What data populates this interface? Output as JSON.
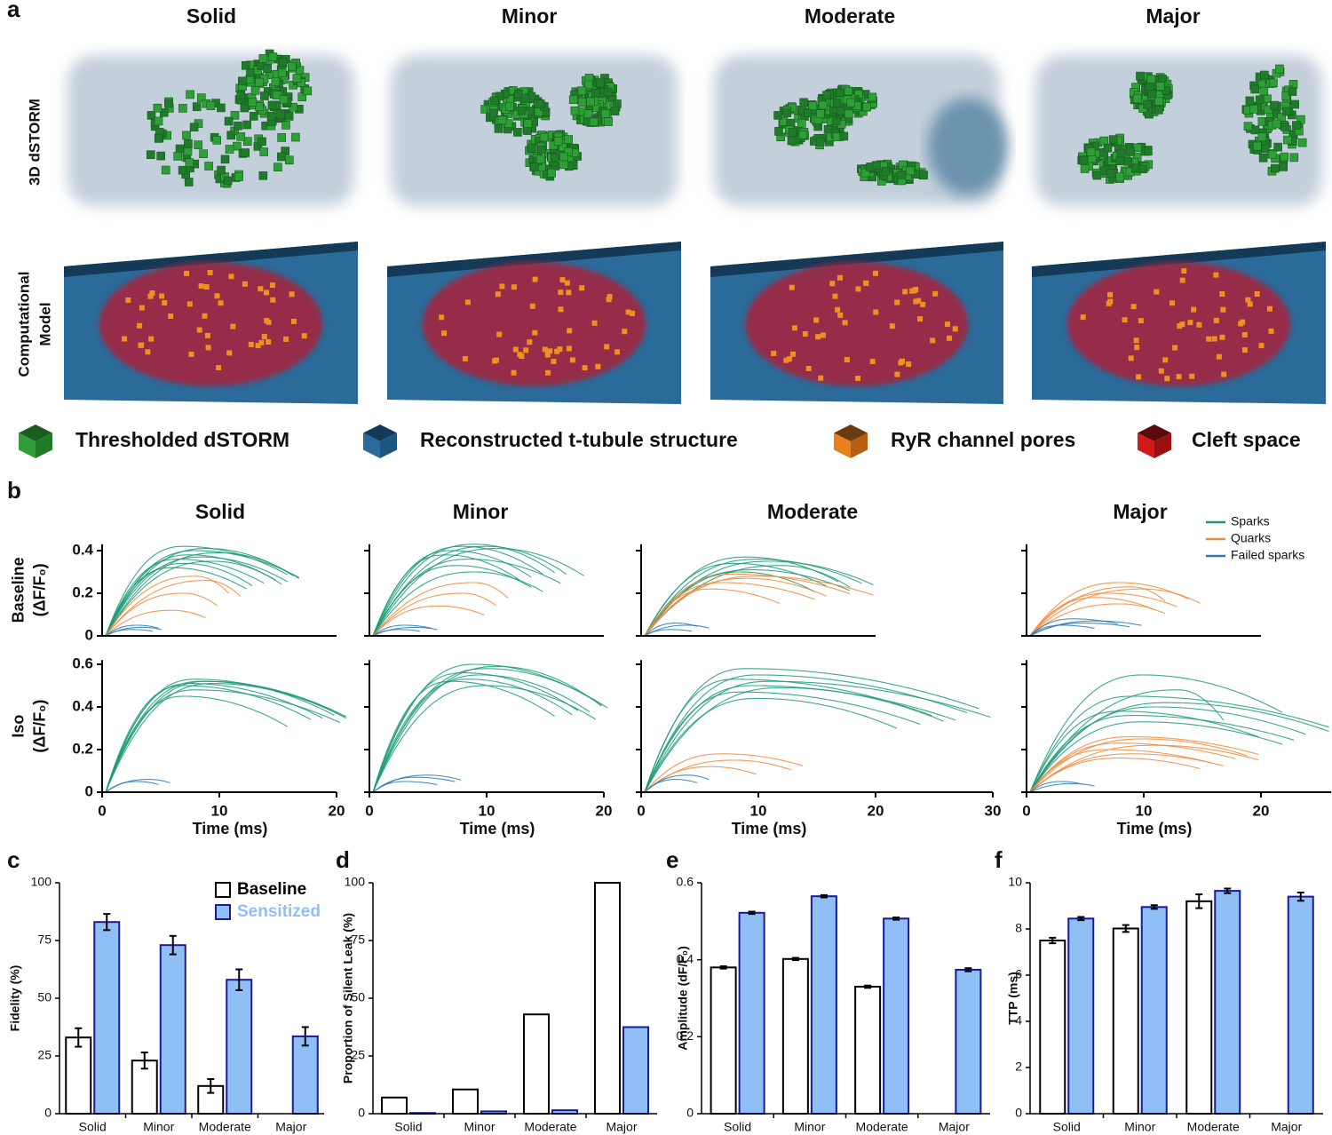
{
  "panel_labels": [
    "a",
    "b",
    "c",
    "d",
    "e",
    "f"
  ],
  "panel_a": {
    "columns": [
      "Solid",
      "Minor",
      "Moderate",
      "Major"
    ],
    "rows": [
      [
        "3D dSTORM"
      ],
      [
        "Computational",
        "Model"
      ]
    ],
    "legend": [
      "Thresholded dSTORM",
      "Reconstructed t-tubule structure",
      "RyR channel pores",
      "Cleft space"
    ]
  },
  "panel_b_legend": [
    {
      "name": "Sparks",
      "color": "#1a9a76"
    },
    {
      "name": "Quarks",
      "color": "#f08a3a"
    },
    {
      "name": "Failed sparks",
      "color": "#2b7bba"
    }
  ],
  "chart_data": [
    {
      "type": "line",
      "title": "Solid",
      "ylabel": [
        "Baseline",
        "(ΔF/F₀)"
      ],
      "xlim": [
        0,
        20
      ],
      "ylim": [
        0,
        0.43
      ],
      "yticks": [
        0,
        0.2,
        0.4
      ],
      "ytick_labels": true,
      "series": [
        {
          "legend_entry": 0,
          "curves": [
            [
              7,
              0.42,
              16
            ],
            [
              8,
              0.4,
              17
            ],
            [
              7.5,
              0.38,
              15
            ],
            [
              9,
              0.41,
              16.5
            ],
            [
              6.5,
              0.36,
              14
            ],
            [
              8.5,
              0.37,
              16
            ],
            [
              10,
              0.39,
              17
            ],
            [
              7,
              0.34,
              13
            ],
            [
              9.5,
              0.35,
              15.5
            ],
            [
              6,
              0.32,
              12.5
            ]
          ]
        },
        {
          "legend_entry": 1,
          "curves": [
            [
              8,
              0.28,
              11
            ],
            [
              7,
              0.2,
              10
            ],
            [
              9,
              0.26,
              12
            ],
            [
              6,
              0.12,
              9
            ]
          ]
        },
        {
          "legend_entry": 2,
          "curves": [
            [
              3,
              0.05,
              5
            ],
            [
              3.5,
              0.04,
              5.2
            ],
            [
              2.5,
              0.03,
              4.5
            ]
          ]
        }
      ]
    },
    {
      "type": "line",
      "title": "Minor",
      "xlim": [
        0,
        20
      ],
      "ylim": [
        0,
        0.43
      ],
      "yticks": [
        0,
        0.2,
        0.4
      ],
      "ytick_labels": false,
      "series": [
        {
          "legend_entry": 0,
          "curves": [
            [
              8,
              0.42,
              15
            ],
            [
              9,
              0.43,
              16
            ],
            [
              7,
              0.4,
              14
            ],
            [
              10,
              0.42,
              17
            ],
            [
              6.5,
              0.38,
              13
            ],
            [
              8.5,
              0.36,
              16.5
            ],
            [
              11,
              0.41,
              18.5
            ],
            [
              7.5,
              0.33,
              14
            ],
            [
              9,
              0.3,
              15
            ]
          ]
        },
        {
          "legend_entry": 1,
          "curves": [
            [
              9,
              0.25,
              12
            ],
            [
              8,
              0.2,
              11
            ],
            [
              6,
              0.14,
              10
            ]
          ]
        },
        {
          "legend_entry": 2,
          "curves": [
            [
              3,
              0.05,
              5.5
            ],
            [
              4,
              0.04,
              6
            ],
            [
              2.5,
              0.03,
              4.5
            ]
          ]
        }
      ]
    },
    {
      "type": "line",
      "title": "Moderate",
      "xlim": [
        0,
        20
      ],
      "ylim": [
        0,
        0.43
      ],
      "yticks": [
        0,
        0.2,
        0.4
      ],
      "ytick_labels": false,
      "series": [
        {
          "legend_entry": 0,
          "curves": [
            [
              9,
              0.37,
              17
            ],
            [
              10,
              0.36,
              19
            ],
            [
              8,
              0.34,
              16
            ],
            [
              11,
              0.35,
              20
            ],
            [
              9.5,
              0.31,
              18
            ],
            [
              12,
              0.33,
              18
            ],
            [
              8.5,
              0.3,
              15
            ]
          ]
        },
        {
          "legend_entry": 1,
          "curves": [
            [
              8,
              0.29,
              18
            ],
            [
              9,
              0.27,
              16
            ],
            [
              7,
              0.25,
              15
            ],
            [
              10,
              0.28,
              20
            ],
            [
              6,
              0.22,
              12
            ]
          ]
        },
        {
          "legend_entry": 2,
          "curves": [
            [
              3,
              0.06,
              5
            ],
            [
              4,
              0.05,
              6
            ],
            [
              2.5,
              0.03,
              4.5
            ]
          ]
        }
      ]
    },
    {
      "type": "line",
      "title": "Major",
      "xlim": [
        0,
        20
      ],
      "ylim": [
        0,
        0.43
      ],
      "yticks": [
        0,
        0.2,
        0.4
      ],
      "ytick_labels": false,
      "legend": "upper right",
      "series": [
        {
          "legend_entry": 1,
          "curves": [
            [
              8,
              0.25,
              14
            ],
            [
              9,
              0.23,
              12
            ],
            [
              7,
              0.2,
              13
            ],
            [
              10,
              0.22,
              15
            ],
            [
              6,
              0.18,
              11
            ],
            [
              8,
              0.15,
              12
            ]
          ]
        },
        {
          "legend_entry": 2,
          "curves": [
            [
              4,
              0.08,
              8
            ],
            [
              5,
              0.06,
              9
            ],
            [
              3,
              0.05,
              6
            ],
            [
              6,
              0.07,
              10
            ]
          ]
        }
      ]
    },
    {
      "type": "line",
      "ylabel": [
        "Iso",
        "(ΔF/F₀)"
      ],
      "xlabel": "Time (ms)",
      "xlim": [
        0,
        20
      ],
      "xticks": [
        0,
        10,
        20
      ],
      "ylim": [
        0,
        0.62
      ],
      "yticks": [
        0,
        0.2,
        0.4,
        0.6
      ],
      "ytick_labels": true,
      "series": [
        {
          "legend_entry": 0,
          "curves": [
            [
              8,
              0.53,
              20
            ],
            [
              8.5,
              0.52,
              21
            ],
            [
              7.5,
              0.51,
              19
            ],
            [
              9,
              0.52,
              21
            ],
            [
              7,
              0.5,
              18
            ],
            [
              8,
              0.48,
              20.5
            ],
            [
              9.5,
              0.51,
              21
            ],
            [
              7,
              0.45,
              16
            ]
          ]
        },
        {
          "legend_entry": 2,
          "curves": [
            [
              4,
              0.06,
              6
            ],
            [
              3,
              0.05,
              5
            ]
          ]
        }
      ]
    },
    {
      "type": "line",
      "xlabel": "Time (ms)",
      "xlim": [
        0,
        20
      ],
      "xticks": [
        0,
        10,
        20
      ],
      "ylim": [
        0,
        0.62
      ],
      "yticks": [
        0,
        0.2,
        0.4,
        0.6
      ],
      "ytick_labels": false,
      "series": [
        {
          "legend_entry": 0,
          "curves": [
            [
              9,
              0.6,
              20
            ],
            [
              10,
              0.58,
              20.5
            ],
            [
              8,
              0.56,
              18
            ],
            [
              11,
              0.59,
              20
            ],
            [
              9.5,
              0.55,
              19
            ],
            [
              8.5,
              0.53,
              17.5
            ],
            [
              10,
              0.5,
              19.5
            ],
            [
              7,
              0.52,
              16
            ]
          ]
        },
        {
          "legend_entry": 2,
          "curves": [
            [
              5,
              0.08,
              8
            ],
            [
              4,
              0.07,
              7.5
            ],
            [
              3,
              0.05,
              6
            ]
          ]
        }
      ]
    },
    {
      "type": "line",
      "xlabel": "Time (ms)",
      "xlim": [
        0,
        30
      ],
      "xticks": [
        0,
        10,
        20,
        30
      ],
      "ylim": [
        0,
        0.62
      ],
      "yticks": [
        0,
        0.2,
        0.4,
        0.6
      ],
      "ytick_labels": false,
      "series": [
        {
          "legend_entry": 0,
          "curves": [
            [
              9,
              0.58,
              29
            ],
            [
              10,
              0.55,
              28
            ],
            [
              8,
              0.53,
              25
            ],
            [
              11,
              0.52,
              30
            ],
            [
              9.5,
              0.5,
              27
            ],
            [
              12,
              0.49,
              26
            ],
            [
              8.5,
              0.47,
              24
            ],
            [
              10,
              0.44,
              22
            ]
          ]
        },
        {
          "legend_entry": 1,
          "curves": [
            [
              7,
              0.18,
              14
            ],
            [
              8,
              0.15,
              13
            ],
            [
              6,
              0.12,
              10
            ]
          ]
        },
        {
          "legend_entry": 2,
          "curves": [
            [
              3,
              0.06,
              5
            ],
            [
              4,
              0.08,
              6
            ]
          ]
        }
      ]
    },
    {
      "type": "line",
      "xlabel": "Time (ms)",
      "xlim": [
        0,
        26
      ],
      "xticks": [
        0,
        10,
        20
      ],
      "ylim": [
        0,
        0.62
      ],
      "yticks": [
        0,
        0.2,
        0.4,
        0.6
      ],
      "ytick_labels": false,
      "series": [
        {
          "legend_entry": 0,
          "curves": [
            [
              10,
              0.55,
              22
            ],
            [
              9,
              0.45,
              26
            ],
            [
              11,
              0.4,
              24
            ],
            [
              8,
              0.38,
              20
            ],
            [
              12,
              0.42,
              26
            ],
            [
              9,
              0.36,
              23
            ],
            [
              10,
              0.33,
              22
            ],
            [
              13,
              0.48,
              17
            ]
          ]
        },
        {
          "legend_entry": 1,
          "curves": [
            [
              9,
              0.26,
              20
            ],
            [
              10,
              0.25,
              19
            ],
            [
              8,
              0.23,
              18
            ],
            [
              11,
              0.22,
              20
            ],
            [
              7,
              0.2,
              16
            ],
            [
              9,
              0.18,
              17
            ],
            [
              8,
              0.16,
              15
            ]
          ]
        },
        {
          "legend_entry": 2,
          "curves": [
            [
              3,
              0.05,
              5
            ],
            [
              4,
              0.04,
              6
            ]
          ]
        }
      ]
    },
    {
      "type": "bar",
      "ylabel": "Fidelity (%)",
      "categories": [
        "Solid",
        "Minor",
        "Moderate",
        "Major"
      ],
      "ylim": [
        0,
        100
      ],
      "yticks": [
        0,
        25,
        50,
        75,
        100
      ],
      "legend": "upper right",
      "series": [
        {
          "name": "Baseline",
          "color": "#ffffff",
          "edge": "#000000",
          "values": [
            33,
            23,
            12,
            null
          ],
          "errors": [
            4,
            3.5,
            3,
            null
          ]
        },
        {
          "name": "Sensitized",
          "color": "#8fbff5",
          "edge": "#1a1a9a",
          "values": [
            83,
            73,
            58,
            33.5
          ],
          "errors": [
            3.5,
            4,
            4.5,
            4
          ]
        }
      ]
    },
    {
      "type": "bar",
      "ylabel": "Proportion of Silent Leak (%)",
      "categories": [
        "Solid",
        "Minor",
        "Moderate",
        "Major"
      ],
      "ylim": [
        0,
        100
      ],
      "yticks": [
        0,
        25,
        50,
        75,
        100
      ],
      "series": [
        {
          "color": "#ffffff",
          "edge": "#000000",
          "values": [
            7,
            10.5,
            43,
            100
          ]
        },
        {
          "color": "#8fbff5",
          "edge": "#1a1a9a",
          "values": [
            0.3,
            1,
            1.5,
            37.5
          ]
        }
      ]
    },
    {
      "type": "bar",
      "ylabel": "Amplitude (dF/F₀)",
      "categories": [
        "Solid",
        "Minor",
        "Moderate",
        "Major"
      ],
      "ylim": [
        0,
        0.6
      ],
      "yticks": [
        0,
        0.2,
        0.4,
        0.6
      ],
      "series": [
        {
          "color": "#ffffff",
          "edge": "#000000",
          "values": [
            0.38,
            0.402,
            0.33,
            null
          ],
          "errors": [
            0.003,
            0.003,
            0.003,
            null
          ]
        },
        {
          "color": "#8fbff5",
          "edge": "#1a1a9a",
          "values": [
            0.522,
            0.565,
            0.507,
            0.374
          ],
          "errors": [
            0.003,
            0.003,
            0.003,
            0.004
          ]
        }
      ]
    },
    {
      "type": "bar",
      "ylabel": "TTP (ms)",
      "categories": [
        "Solid",
        "Minor",
        "Moderate",
        "Major"
      ],
      "ylim": [
        0,
        10
      ],
      "yticks": [
        0,
        2,
        4,
        6,
        8,
        10
      ],
      "series": [
        {
          "color": "#ffffff",
          "edge": "#000000",
          "values": [
            7.5,
            8.02,
            9.2,
            null
          ],
          "errors": [
            0.12,
            0.15,
            0.3,
            null
          ]
        },
        {
          "color": "#8fbff5",
          "edge": "#1a1a9a",
          "values": [
            8.45,
            8.95,
            9.65,
            9.4
          ],
          "errors": [
            0.07,
            0.08,
            0.1,
            0.18
          ]
        }
      ]
    }
  ]
}
